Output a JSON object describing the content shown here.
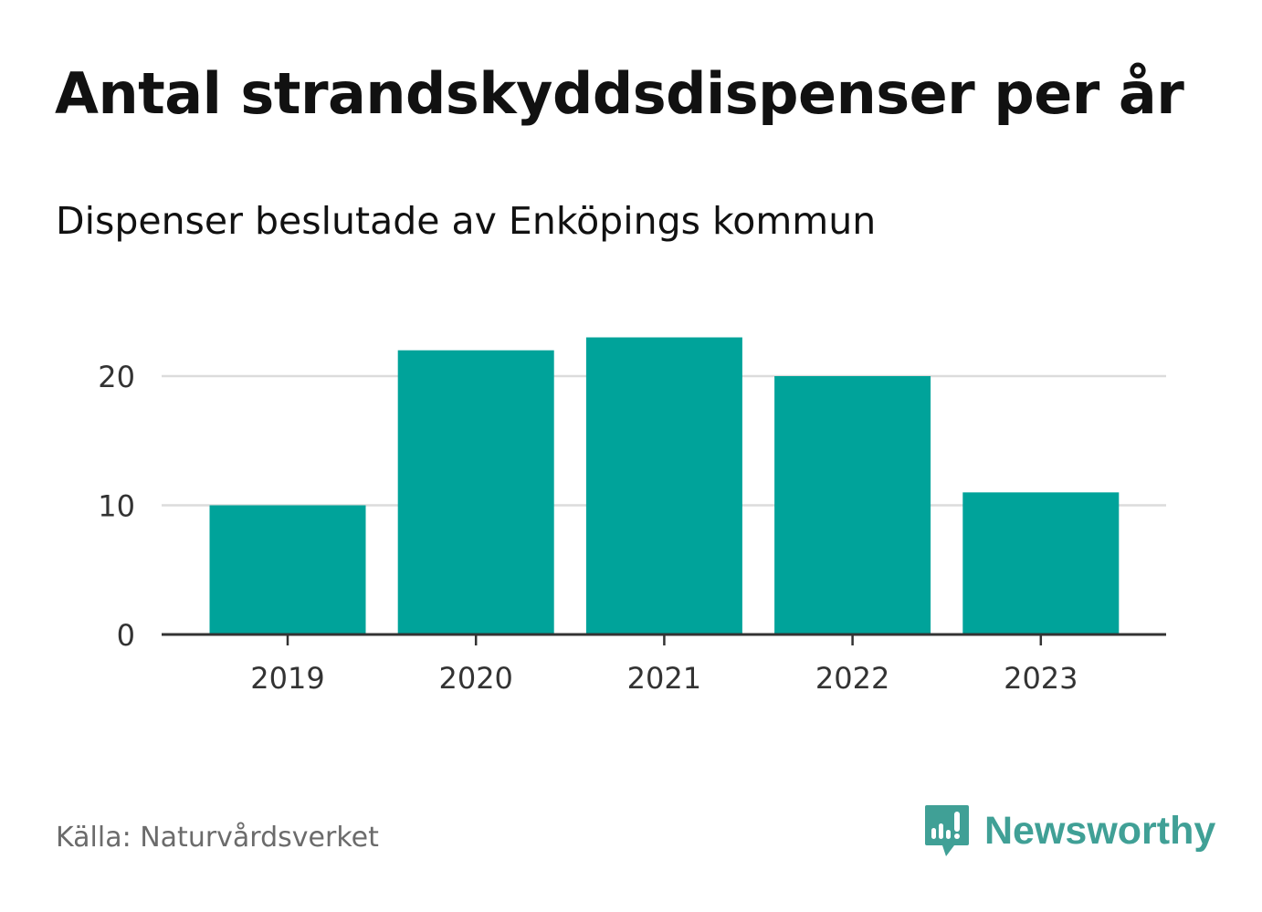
{
  "title": "Antal strandskyddsdispenser per år",
  "subtitle": "Dispenser beslutade av Enköpings kommun",
  "source": "Källa: Naturvårdsverket",
  "logo": {
    "text": "Newsworthy",
    "color": "#40A096"
  },
  "chart_data": {
    "type": "bar",
    "title": "Antal strandskyddsdispenser per år",
    "xlabel": "",
    "ylabel": "",
    "categories": [
      "2019",
      "2020",
      "2021",
      "2022",
      "2023"
    ],
    "values": [
      10,
      22,
      23,
      20,
      11
    ],
    "ylim": [
      0,
      24
    ],
    "yticks": [
      0,
      10,
      20
    ],
    "grid": true,
    "bar_color": "#00A39A"
  }
}
